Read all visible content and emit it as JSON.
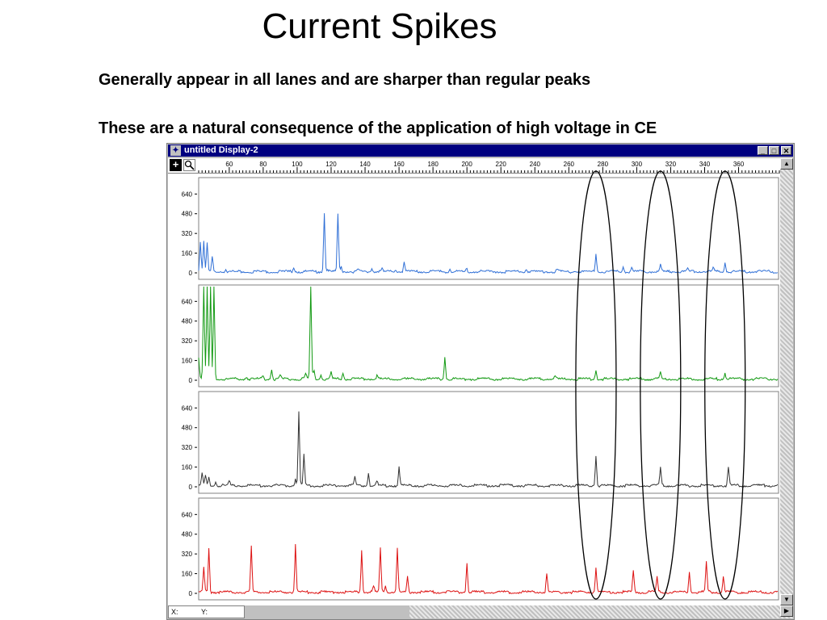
{
  "slide": {
    "title": "Current Spikes",
    "bullets": [
      "Generally appear in all lanes and are sharper than regular peaks",
      "These are a natural consequence of the application of high voltage in CE"
    ]
  },
  "window": {
    "title": "untitled Display-2",
    "minimize_label": "_",
    "maximize_label": "□",
    "close_label": "✕",
    "status": {
      "x_label": "X:",
      "y_label": "Y:"
    }
  },
  "toolbar": {
    "crosshair_icon": "crosshair-icon",
    "zoom_icon": "magnifier-icon"
  },
  "chart_data": {
    "type": "line",
    "x_ticks": [
      60,
      80,
      100,
      120,
      140,
      160,
      180,
      200,
      220,
      240,
      260,
      280,
      300,
      320,
      340,
      360
    ],
    "y_ticks": [
      0,
      160,
      320,
      480,
      640
    ],
    "xlim": [
      42,
      384
    ],
    "ylim": [
      -20,
      760
    ],
    "series": [
      {
        "color": "#2f6fd6",
        "peaks": [
          [
            43,
            250
          ],
          [
            45,
            240
          ],
          [
            47,
            230
          ],
          [
            50,
            120
          ],
          [
            58,
            25
          ],
          [
            98,
            40
          ],
          [
            116,
            480
          ],
          [
            118,
            25
          ],
          [
            124,
            470
          ],
          [
            126,
            40
          ],
          [
            136,
            20
          ],
          [
            144,
            35
          ],
          [
            150,
            20
          ],
          [
            158,
            20
          ],
          [
            163,
            85
          ],
          [
            190,
            25
          ],
          [
            200,
            20
          ],
          [
            235,
            20
          ],
          [
            253,
            18
          ],
          [
            276,
            150
          ],
          [
            292,
            40
          ],
          [
            297,
            35
          ],
          [
            314,
            55
          ],
          [
            330,
            20
          ],
          [
            345,
            30
          ],
          [
            352,
            75
          ]
        ]
      },
      {
        "color": "#119911",
        "peaks": [
          [
            42,
            180
          ],
          [
            45,
            760
          ],
          [
            47,
            760
          ],
          [
            49,
            760
          ],
          [
            51,
            760
          ],
          [
            70,
            20
          ],
          [
            80,
            25
          ],
          [
            85,
            80
          ],
          [
            90,
            30
          ],
          [
            105,
            40
          ],
          [
            108,
            760
          ],
          [
            110,
            80
          ],
          [
            114,
            40
          ],
          [
            120,
            60
          ],
          [
            127,
            50
          ],
          [
            147,
            25
          ],
          [
            187,
            180
          ],
          [
            252,
            20
          ],
          [
            276,
            80
          ],
          [
            314,
            55
          ],
          [
            352,
            50
          ]
        ]
      },
      {
        "color": "#333333",
        "peaks": [
          [
            44,
            100
          ],
          [
            46,
            80
          ],
          [
            48,
            60
          ],
          [
            52,
            30
          ],
          [
            60,
            35
          ],
          [
            99,
            60
          ],
          [
            101,
            600
          ],
          [
            104,
            250
          ],
          [
            134,
            70
          ],
          [
            142,
            100
          ],
          [
            147,
            35
          ],
          [
            160,
            150
          ],
          [
            276,
            240
          ],
          [
            314,
            140
          ],
          [
            354,
            150
          ]
        ]
      },
      {
        "color": "#dd1111",
        "peaks": [
          [
            45,
            200
          ],
          [
            48,
            360
          ],
          [
            73,
            370
          ],
          [
            99,
            380
          ],
          [
            138,
            340
          ],
          [
            145,
            50
          ],
          [
            149,
            360
          ],
          [
            152,
            60
          ],
          [
            159,
            350
          ],
          [
            165,
            120
          ],
          [
            200,
            240
          ],
          [
            247,
            160
          ],
          [
            276,
            210
          ],
          [
            298,
            170
          ],
          [
            312,
            120
          ],
          [
            331,
            170
          ],
          [
            341,
            250
          ],
          [
            351,
            130
          ]
        ]
      }
    ]
  }
}
